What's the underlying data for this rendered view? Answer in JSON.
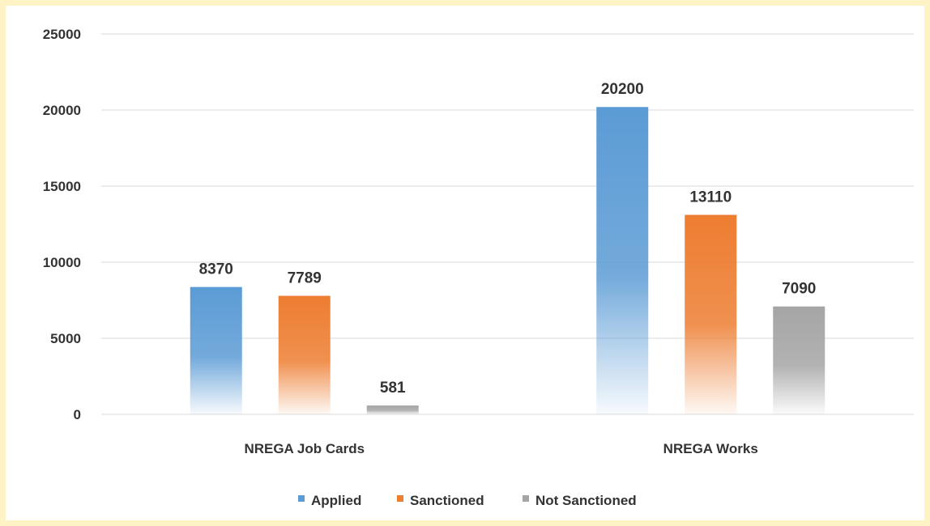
{
  "chart_data": {
    "type": "bar",
    "categories": [
      "NREGA Job Cards",
      "NREGA Works"
    ],
    "series": [
      {
        "name": "Applied",
        "values": [
          8370,
          20200
        ],
        "color": "#5b9bd5"
      },
      {
        "name": "Sanctioned",
        "values": [
          7789,
          13110
        ],
        "color": "#ed7d31"
      },
      {
        "name": "Not Sanctioned",
        "values": [
          581,
          7090
        ],
        "color": "#a5a5a5"
      }
    ],
    "data_labels": [
      [
        "8370",
        "20200"
      ],
      [
        "7789",
        "13110"
      ],
      [
        "581",
        "7090"
      ]
    ],
    "y_ticks": [
      "0",
      "5000",
      "10000",
      "15000",
      "20000",
      "25000"
    ],
    "ylim": [
      0,
      25000
    ],
    "grid": true,
    "legend_position": "bottom",
    "title": "",
    "xlabel": "",
    "ylabel": ""
  }
}
